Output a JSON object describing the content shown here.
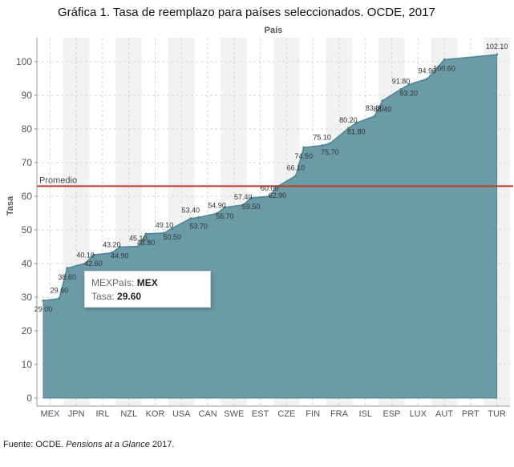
{
  "figure": {
    "title": "Gráfica 1. Tasa de reemplazo para países seleccionados. OCDE, 2017",
    "source_prefix": "Fuente: OCDE. ",
    "source_italic": "Pensions at a Glance",
    "source_suffix": " 2017."
  },
  "tooltip": {
    "field1_label": "MEXPaís:",
    "field1_value": "MEX",
    "field2_label": "Tasa:",
    "field2_value": "29.60"
  },
  "chart_data": {
    "type": "area",
    "title": "",
    "xlabel": "País",
    "ylabel": "Tasa",
    "ylim": [
      0,
      105
    ],
    "yticks": [
      0,
      10,
      20,
      30,
      40,
      50,
      60,
      70,
      80,
      90,
      100
    ],
    "grid": true,
    "categories": [
      "MEX",
      "JPN",
      "IRL",
      "NZL",
      "KOR",
      "USA",
      "CAN",
      "SWE",
      "EST",
      "CZE",
      "FIN",
      "FRA",
      "ISL",
      "ESP",
      "LUX",
      "AUT",
      "PRT",
      "TUR"
    ],
    "points": [
      {
        "x": "MEX",
        "v": 29.0,
        "label": "29.00"
      },
      {
        "x": "MEX",
        "v": 29.6,
        "label": "29.60"
      },
      {
        "x": "JPN",
        "v": 38.6,
        "label": "38.60"
      },
      {
        "x": "JPN",
        "v": 40.1,
        "label": "40.10"
      },
      {
        "x": "IRL",
        "v": 42.6,
        "label": "42.60"
      },
      {
        "x": "IRL",
        "v": 43.2,
        "label": "43.20"
      },
      {
        "x": "NZL",
        "v": 44.9,
        "label": "44.90"
      },
      {
        "x": "NZL",
        "v": 45.1,
        "label": "45.10"
      },
      {
        "x": "KOR",
        "v": 48.8,
        "label": "48.80"
      },
      {
        "x": "KOR",
        "v": 49.1,
        "label": "49.10"
      },
      {
        "x": "USA",
        "v": 50.5,
        "label": "50.50"
      },
      {
        "x": "USA",
        "v": 53.4,
        "label": "53.40"
      },
      {
        "x": "CAN",
        "v": 53.7,
        "label": "53.70"
      },
      {
        "x": "CAN",
        "v": 54.9,
        "label": "54.90"
      },
      {
        "x": "SWE",
        "v": 56.7,
        "label": "56.70"
      },
      {
        "x": "SWE",
        "v": 57.4,
        "label": "57.40"
      },
      {
        "x": "EST",
        "v": 59.5,
        "label": "59.50"
      },
      {
        "x": "EST",
        "v": 60.0,
        "label": "60.00"
      },
      {
        "x": "CZE",
        "v": 62.9,
        "label": "62.90"
      },
      {
        "x": "CZE",
        "v": 66.1,
        "label": "66.10"
      },
      {
        "x": "FIN",
        "v": 74.5,
        "label": "74.50"
      },
      {
        "x": "FIN",
        "v": 75.1,
        "label": "75.10"
      },
      {
        "x": "FRA",
        "v": 75.7,
        "label": "75.70"
      },
      {
        "x": "FRA",
        "v": 80.2,
        "label": "80.20"
      },
      {
        "x": "ISL",
        "v": 81.8,
        "label": "81.80"
      },
      {
        "x": "ISL",
        "v": 83.8,
        "label": "83.80"
      },
      {
        "x": "ESP",
        "v": 88.4,
        "label": "88.40"
      },
      {
        "x": "ESP",
        "v": 91.8,
        "label": "91.80"
      },
      {
        "x": "LUX",
        "v": 93.2,
        "label": "93.20"
      },
      {
        "x": "LUX",
        "v": 94.9,
        "label": "94.90"
      },
      {
        "x": "AUT",
        "v": 100.6,
        "label": "100.60"
      },
      {
        "x": "TUR",
        "v": 102.1,
        "label": "102.10"
      }
    ],
    "reference_line": {
      "label": "Promedio",
      "value": 63.0
    },
    "colors": {
      "area": "#6a9ba7",
      "area_stroke": "#4f8595",
      "reference": "#c0392b",
      "band": "#f2f2f2",
      "grid": "#d5d5d5"
    }
  }
}
